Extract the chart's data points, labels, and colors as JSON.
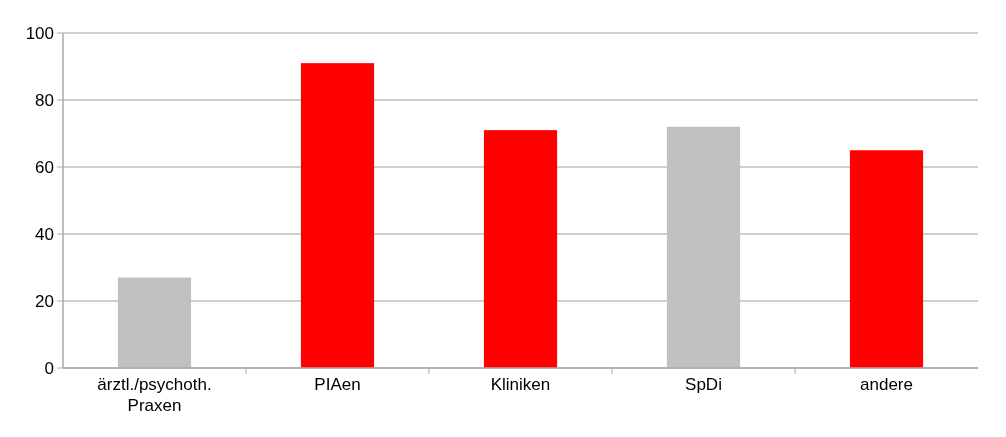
{
  "chart_data": {
    "type": "bar",
    "categories": [
      "ärztl./psychoth. Praxen",
      "PIAen",
      "Kliniken",
      "SpDi",
      "andere"
    ],
    "values": [
      27,
      91,
      71,
      72,
      65
    ],
    "colors": [
      "#c0c0c0",
      "#ff0000",
      "#ff0000",
      "#c0c0c0",
      "#ff0000"
    ],
    "ylim": [
      0,
      100
    ],
    "yticks": [
      0,
      20,
      40,
      60,
      80,
      100
    ],
    "grid": "y"
  }
}
